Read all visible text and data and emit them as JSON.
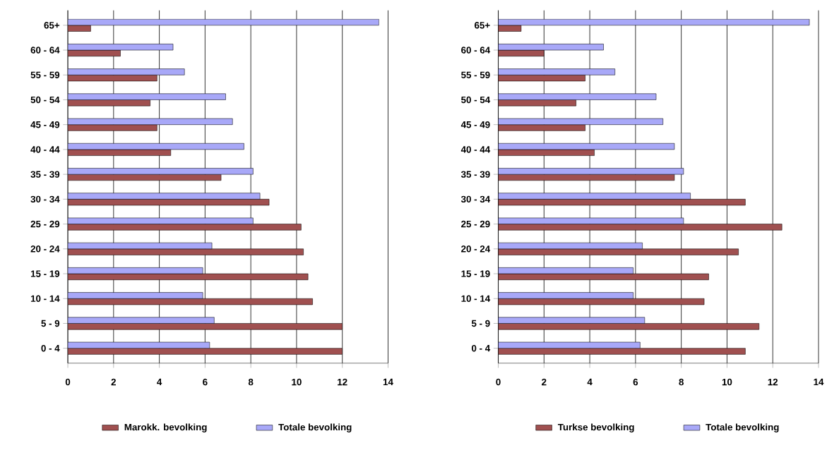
{
  "chart_data": [
    {
      "type": "bar",
      "orientation": "horizontal",
      "categories": [
        "65+",
        "60 - 64",
        "55 - 59",
        "50 - 54",
        "45 - 49",
        "40 - 44",
        "35 - 39",
        "30 - 34",
        "25 - 29",
        "20 - 24",
        "15 - 19",
        "10 - 14",
        "5 - 9",
        "0 - 4"
      ],
      "series": [
        {
          "name": "Marokk. bevolking",
          "color": "#a05050",
          "values": [
            1.0,
            2.3,
            3.9,
            3.6,
            3.9,
            4.5,
            6.7,
            8.8,
            10.2,
            10.3,
            10.5,
            10.7,
            12.0,
            12.0
          ]
        },
        {
          "name": "Totale bevolking",
          "color": "#a8a8f8",
          "values": [
            13.6,
            4.6,
            5.1,
            6.9,
            7.2,
            7.7,
            8.1,
            8.4,
            8.1,
            6.3,
            5.9,
            5.9,
            6.4,
            6.2
          ]
        }
      ],
      "xlim": [
        0,
        14
      ],
      "xticks": [
        0,
        2,
        4,
        6,
        8,
        10,
        12,
        14
      ],
      "grid": "x",
      "legend": "bottom"
    },
    {
      "type": "bar",
      "orientation": "horizontal",
      "categories": [
        "65+",
        "60 - 64",
        "55 - 59",
        "50 - 54",
        "45 - 49",
        "40 - 44",
        "35 - 39",
        "30 - 34",
        "25 - 29",
        "20 - 24",
        "15 - 19",
        "10 - 14",
        "5 - 9",
        "0 - 4"
      ],
      "series": [
        {
          "name": "Turkse bevolking",
          "color": "#a05050",
          "values": [
            1.0,
            2.0,
            3.8,
            3.4,
            3.8,
            4.2,
            7.7,
            10.8,
            12.4,
            10.5,
            9.2,
            9.0,
            11.4,
            10.8
          ]
        },
        {
          "name": "Totale bevolking",
          "color": "#a8a8f8",
          "values": [
            13.6,
            4.6,
            5.1,
            6.9,
            7.2,
            7.7,
            8.1,
            8.4,
            8.1,
            6.3,
            5.9,
            5.9,
            6.4,
            6.2
          ]
        }
      ],
      "xlim": [
        0,
        14
      ],
      "xticks": [
        0,
        2,
        4,
        6,
        8,
        10,
        12,
        14
      ],
      "grid": "x",
      "legend": "bottom"
    }
  ]
}
